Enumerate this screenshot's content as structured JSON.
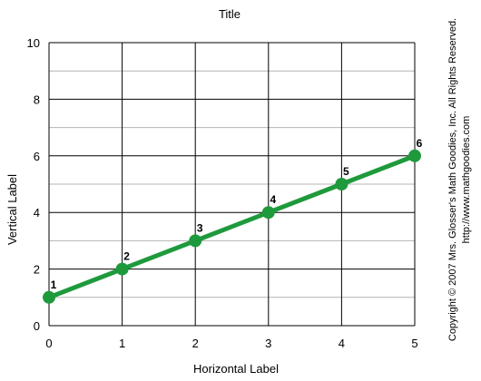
{
  "chart_data": {
    "type": "line",
    "title": "Title",
    "xlabel": "Horizontal Label",
    "ylabel": "Vertical Label",
    "xlim": [
      0,
      5
    ],
    "ylim": [
      0,
      10
    ],
    "x_ticks": [
      "0",
      "1",
      "2",
      "3",
      "4",
      "5"
    ],
    "y_ticks": [
      "0",
      "2",
      "4",
      "6",
      "8",
      "10"
    ],
    "grid": true,
    "legend": "none",
    "series": [
      {
        "color": "#1e9a3c",
        "points": [
          {
            "x": 0,
            "y": 1,
            "label": "1"
          },
          {
            "x": 1,
            "y": 2,
            "label": "2"
          },
          {
            "x": 2,
            "y": 3,
            "label": "3"
          },
          {
            "x": 3,
            "y": 4,
            "label": "4"
          },
          {
            "x": 4,
            "y": 5,
            "label": "5"
          },
          {
            "x": 5,
            "y": 6,
            "label": "6"
          }
        ]
      }
    ]
  },
  "copyright": {
    "line1": "Copyright © 2007 Mrs. Glosser's Math Goodies, Inc.  All Rights Reserved.",
    "line2": "http://www.mathgoodies.com"
  },
  "colors": {
    "series": "#1e9a3c",
    "major_grid": "#000000",
    "minor_grid": "#b4b4b4"
  }
}
